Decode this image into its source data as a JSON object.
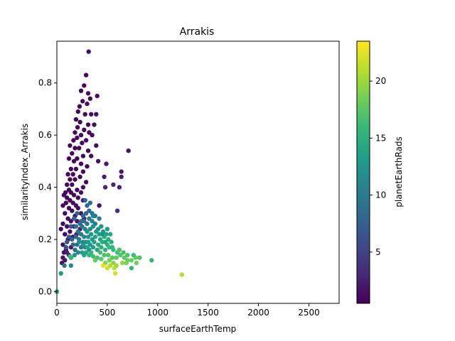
{
  "chart_data": {
    "type": "scatter",
    "title": "Arrakis",
    "xlabel": "surfaceEarthTemp",
    "ylabel": "similarityIndex_Arrakis",
    "xlim": [
      0,
      2800
    ],
    "ylim": [
      -0.045,
      0.96
    ],
    "xticks": [
      0,
      500,
      1000,
      1500,
      2000,
      2500
    ],
    "yticks": [
      0.0,
      0.2,
      0.4,
      0.6,
      0.8
    ],
    "grid": false,
    "colorbar": {
      "label": "planetEarthRads",
      "colormap": "viridis",
      "range": [
        0.5,
        23.5
      ],
      "ticks": [
        5,
        10,
        15,
        20
      ]
    },
    "colors": {
      "viridis": [
        "#440154",
        "#482878",
        "#3e4a89",
        "#31688e",
        "#26828e",
        "#1f9e89",
        "#35b779",
        "#6ece58",
        "#b5de2b",
        "#fde725"
      ]
    },
    "points": [
      [
        315,
        0.92,
        1.2
      ],
      [
        290,
        0.83,
        1.1
      ],
      [
        270,
        0.79,
        1.0
      ],
      [
        240,
        0.77,
        1.1
      ],
      [
        310,
        0.76,
        1.3
      ],
      [
        400,
        0.75,
        1.4
      ],
      [
        330,
        0.74,
        1.2
      ],
      [
        255,
        0.73,
        1.0
      ],
      [
        300,
        0.72,
        1.1
      ],
      [
        225,
        0.71,
        1.0
      ],
      [
        210,
        0.69,
        1.2
      ],
      [
        280,
        0.68,
        1.1
      ],
      [
        340,
        0.68,
        1.3
      ],
      [
        390,
        0.68,
        1.5
      ],
      [
        190,
        0.66,
        1.0
      ],
      [
        230,
        0.65,
        1.1
      ],
      [
        310,
        0.64,
        1.2
      ],
      [
        370,
        0.64,
        1.4
      ],
      [
        205,
        0.63,
        1.0
      ],
      [
        270,
        0.62,
        1.1
      ],
      [
        320,
        0.61,
        1.2
      ],
      [
        180,
        0.61,
        1.0
      ],
      [
        240,
        0.6,
        1.1
      ],
      [
        350,
        0.6,
        1.3
      ],
      [
        200,
        0.59,
        1.1
      ],
      [
        165,
        0.58,
        1.0
      ],
      [
        290,
        0.58,
        1.2
      ],
      [
        250,
        0.57,
        1.1
      ],
      [
        130,
        0.56,
        1.0
      ],
      [
        390,
        0.56,
        1.5
      ],
      [
        220,
        0.55,
        1.1
      ],
      [
        180,
        0.55,
        1.0
      ],
      [
        310,
        0.54,
        1.2
      ],
      [
        710,
        0.54,
        1.8
      ],
      [
        150,
        0.53,
        1.0
      ],
      [
        260,
        0.52,
        1.1
      ],
      [
        340,
        0.52,
        1.3
      ],
      [
        120,
        0.51,
        1.0
      ],
      [
        200,
        0.51,
        1.1
      ],
      [
        410,
        0.5,
        1.6
      ],
      [
        170,
        0.5,
        1.0
      ],
      [
        240,
        0.49,
        1.1
      ],
      [
        300,
        0.48,
        1.2
      ],
      [
        490,
        0.49,
        2.0
      ],
      [
        140,
        0.47,
        1.0
      ],
      [
        190,
        0.47,
        1.1
      ],
      [
        260,
        0.46,
        1.2
      ],
      [
        640,
        0.46,
        2.2
      ],
      [
        110,
        0.45,
        1.0
      ],
      [
        160,
        0.45,
        1.1
      ],
      [
        230,
        0.44,
        1.2
      ],
      [
        470,
        0.44,
        2.4
      ],
      [
        640,
        0.44,
        2.5
      ],
      [
        130,
        0.43,
        1.1
      ],
      [
        180,
        0.43,
        1.2
      ],
      [
        290,
        0.42,
        1.3
      ],
      [
        100,
        0.41,
        1.0
      ],
      [
        150,
        0.41,
        1.1
      ],
      [
        560,
        0.41,
        3.0
      ],
      [
        480,
        0.4,
        3.2
      ],
      [
        620,
        0.4,
        2.8
      ],
      [
        260,
        0.4,
        1.4
      ],
      [
        120,
        0.39,
        1.1
      ],
      [
        200,
        0.39,
        1.2
      ],
      [
        85,
        0.38,
        1.0
      ],
      [
        140,
        0.38,
        1.1
      ],
      [
        240,
        0.38,
        1.3
      ],
      [
        70,
        0.37,
        1.0
      ],
      [
        170,
        0.37,
        1.2
      ],
      [
        100,
        0.36,
        1.1
      ],
      [
        210,
        0.36,
        1.3
      ],
      [
        260,
        0.35,
        1.5
      ],
      [
        130,
        0.35,
        1.2
      ],
      [
        160,
        0.34,
        1.3
      ],
      [
        90,
        0.34,
        1.1
      ],
      [
        190,
        0.33,
        1.4
      ],
      [
        420,
        0.33,
        1.8
      ],
      [
        60,
        0.33,
        1.0
      ],
      [
        120,
        0.32,
        1.2
      ],
      [
        210,
        0.32,
        1.4
      ],
      [
        600,
        0.31,
        3.5
      ],
      [
        150,
        0.31,
        1.3
      ],
      [
        80,
        0.3,
        1.1
      ],
      [
        240,
        0.3,
        1.6
      ],
      [
        180,
        0.29,
        1.5
      ],
      [
        110,
        0.28,
        1.2
      ],
      [
        270,
        0.28,
        2.0
      ],
      [
        140,
        0.27,
        1.4
      ],
      [
        200,
        0.27,
        1.8
      ],
      [
        60,
        0.26,
        1.1
      ],
      [
        100,
        0.25,
        1.3
      ],
      [
        170,
        0.25,
        1.6
      ],
      [
        230,
        0.24,
        2.2
      ],
      [
        40,
        0.24,
        1.0
      ],
      [
        130,
        0.23,
        1.5
      ],
      [
        80,
        0.22,
        1.3
      ],
      [
        195,
        0.22,
        2.0
      ],
      [
        160,
        0.21,
        1.8
      ],
      [
        110,
        0.2,
        1.6
      ],
      [
        60,
        0.18,
        1.4
      ],
      [
        140,
        0.17,
        1.9
      ],
      [
        90,
        0.16,
        1.7
      ],
      [
        70,
        0.15,
        1.6
      ],
      [
        120,
        0.14,
        2.0
      ],
      [
        60,
        0.13,
        1.8
      ],
      [
        50,
        0.11,
        1.8
      ],
      [
        80,
        0.12,
        2.1
      ],
      [
        100,
        0.15,
        2.5
      ],
      [
        270,
        0.27,
        8.5
      ],
      [
        300,
        0.26,
        9.2
      ],
      [
        320,
        0.28,
        10.1
      ],
      [
        350,
        0.27,
        11.0
      ],
      [
        380,
        0.26,
        10.5
      ],
      [
        250,
        0.25,
        9.8
      ],
      [
        280,
        0.24,
        10.8
      ],
      [
        330,
        0.24,
        11.5
      ],
      [
        360,
        0.25,
        12.0
      ],
      [
        410,
        0.24,
        11.8
      ],
      [
        440,
        0.25,
        12.5
      ],
      [
        300,
        0.23,
        12.2
      ],
      [
        340,
        0.22,
        12.8
      ],
      [
        390,
        0.23,
        13.1
      ],
      [
        420,
        0.22,
        13.5
      ],
      [
        460,
        0.23,
        12.9
      ],
      [
        490,
        0.22,
        13.8
      ],
      [
        240,
        0.22,
        10.2
      ],
      [
        270,
        0.21,
        11.3
      ],
      [
        310,
        0.21,
        12.6
      ],
      [
        350,
        0.2,
        13.2
      ],
      [
        380,
        0.21,
        13.6
      ],
      [
        430,
        0.2,
        14.0
      ],
      [
        470,
        0.21,
        14.3
      ],
      [
        510,
        0.2,
        14.6
      ],
      [
        220,
        0.2,
        9.5
      ],
      [
        260,
        0.19,
        10.4
      ],
      [
        290,
        0.19,
        11.6
      ],
      [
        330,
        0.18,
        12.9
      ],
      [
        370,
        0.19,
        13.9
      ],
      [
        410,
        0.18,
        14.4
      ],
      [
        450,
        0.19,
        14.8
      ],
      [
        500,
        0.18,
        15.2
      ],
      [
        540,
        0.19,
        15.0
      ],
      [
        200,
        0.18,
        9.0
      ],
      [
        240,
        0.17,
        10.0
      ],
      [
        280,
        0.17,
        11.0
      ],
      [
        320,
        0.16,
        12.4
      ],
      [
        360,
        0.17,
        13.4
      ],
      [
        400,
        0.16,
        14.2
      ],
      [
        440,
        0.17,
        15.0
      ],
      [
        480,
        0.16,
        15.6
      ],
      [
        520,
        0.17,
        15.8
      ],
      [
        560,
        0.16,
        16.1
      ],
      [
        600,
        0.15,
        16.4
      ],
      [
        180,
        0.16,
        8.8
      ],
      [
        160,
        0.18,
        8.2
      ],
      [
        150,
        0.2,
        7.8
      ],
      [
        190,
        0.21,
        8.6
      ],
      [
        210,
        0.23,
        9.1
      ],
      [
        230,
        0.26,
        8.4
      ],
      [
        260,
        0.29,
        8.0
      ],
      [
        290,
        0.3,
        8.2
      ],
      [
        320,
        0.31,
        8.8
      ],
      [
        350,
        0.3,
        9.4
      ],
      [
        380,
        0.29,
        9.9
      ],
      [
        300,
        0.33,
        8.0
      ],
      [
        330,
        0.34,
        8.6
      ],
      [
        280,
        0.35,
        7.6
      ],
      [
        200,
        0.3,
        7.9
      ],
      [
        170,
        0.28,
        7.4
      ],
      [
        140,
        0.25,
        7.1
      ],
      [
        120,
        0.21,
        7.0
      ],
      [
        100,
        0.19,
        6.8
      ],
      [
        90,
        0.17,
        6.6
      ],
      [
        430,
        0.15,
        16.5
      ],
      [
        470,
        0.14,
        17.0
      ],
      [
        510,
        0.14,
        17.2
      ],
      [
        550,
        0.13,
        17.5
      ],
      [
        590,
        0.13,
        17.8
      ],
      [
        630,
        0.14,
        17.2
      ],
      [
        670,
        0.13,
        17.6
      ],
      [
        700,
        0.12,
        18.0
      ],
      [
        740,
        0.12,
        18.3
      ],
      [
        780,
        0.13,
        17.9
      ],
      [
        620,
        0.16,
        16.8
      ],
      [
        660,
        0.15,
        16.6
      ],
      [
        700,
        0.14,
        16.9
      ],
      [
        760,
        0.14,
        16.2
      ],
      [
        820,
        0.13,
        17.0
      ],
      [
        940,
        0.12,
        15.8
      ],
      [
        480,
        0.11,
        19.0
      ],
      [
        520,
        0.12,
        18.6
      ],
      [
        560,
        0.11,
        19.4
      ],
      [
        590,
        0.1,
        20.0
      ],
      [
        530,
        0.1,
        20.6
      ],
      [
        570,
        0.09,
        21.2
      ],
      [
        580,
        0.07,
        22.0
      ],
      [
        460,
        0.1,
        22.5
      ],
      [
        500,
        0.09,
        21.8
      ],
      [
        650,
        0.11,
        19.6
      ],
      [
        690,
        0.11,
        18.8
      ],
      [
        740,
        0.09,
        15.5
      ],
      [
        790,
        0.11,
        18.5
      ],
      [
        1240,
        0.065,
        21.0
      ],
      [
        40,
        0.07,
        13.0
      ],
      [
        140,
        0.13,
        14.5
      ],
      [
        140,
        0.1,
        11.5
      ],
      [
        0,
        0.0,
        14.0
      ],
      [
        75,
        0.1,
        9.5
      ],
      [
        130,
        0.135,
        16.0
      ],
      [
        175,
        0.14,
        12.0
      ],
      [
        210,
        0.15,
        11.0
      ],
      [
        250,
        0.15,
        13.5
      ],
      [
        290,
        0.15,
        14.1
      ],
      [
        320,
        0.14,
        15.3
      ],
      [
        360,
        0.135,
        16.3
      ],
      [
        400,
        0.13,
        16.8
      ],
      [
        440,
        0.125,
        17.4
      ],
      [
        380,
        0.12,
        18.0
      ],
      [
        340,
        0.15,
        15.8
      ],
      [
        300,
        0.17,
        14.0
      ],
      [
        260,
        0.18,
        12.5
      ],
      [
        220,
        0.19,
        11.8
      ],
      [
        450,
        0.22,
        12.0
      ],
      [
        500,
        0.24,
        12.8
      ],
      [
        480,
        0.19,
        14.0
      ],
      [
        530,
        0.22,
        14.2
      ],
      [
        550,
        0.17,
        15.4
      ],
      [
        420,
        0.28,
        10.0
      ],
      [
        360,
        0.29,
        10.4
      ],
      [
        240,
        0.27,
        9.0
      ],
      [
        190,
        0.25,
        8.8
      ],
      [
        310,
        0.19,
        13.0
      ],
      [
        270,
        0.14,
        13.8
      ]
    ]
  }
}
